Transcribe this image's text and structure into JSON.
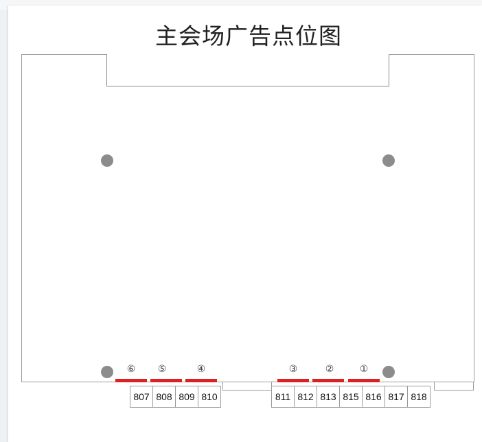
{
  "title": "主会场广告点位图",
  "ad_points": [
    {
      "label": "⑥"
    },
    {
      "label": "⑤"
    },
    {
      "label": "④"
    },
    {
      "label": "③"
    },
    {
      "label": "②"
    },
    {
      "label": "①"
    }
  ],
  "booths_left": [
    "807",
    "808",
    "809",
    "810"
  ],
  "booths_right": [
    "811",
    "812",
    "813",
    "815",
    "816",
    "817",
    "818"
  ],
  "colors": {
    "ad_bar": "#e02020",
    "pillar": "#8c8c8c",
    "outline": "#9a9a9a"
  }
}
